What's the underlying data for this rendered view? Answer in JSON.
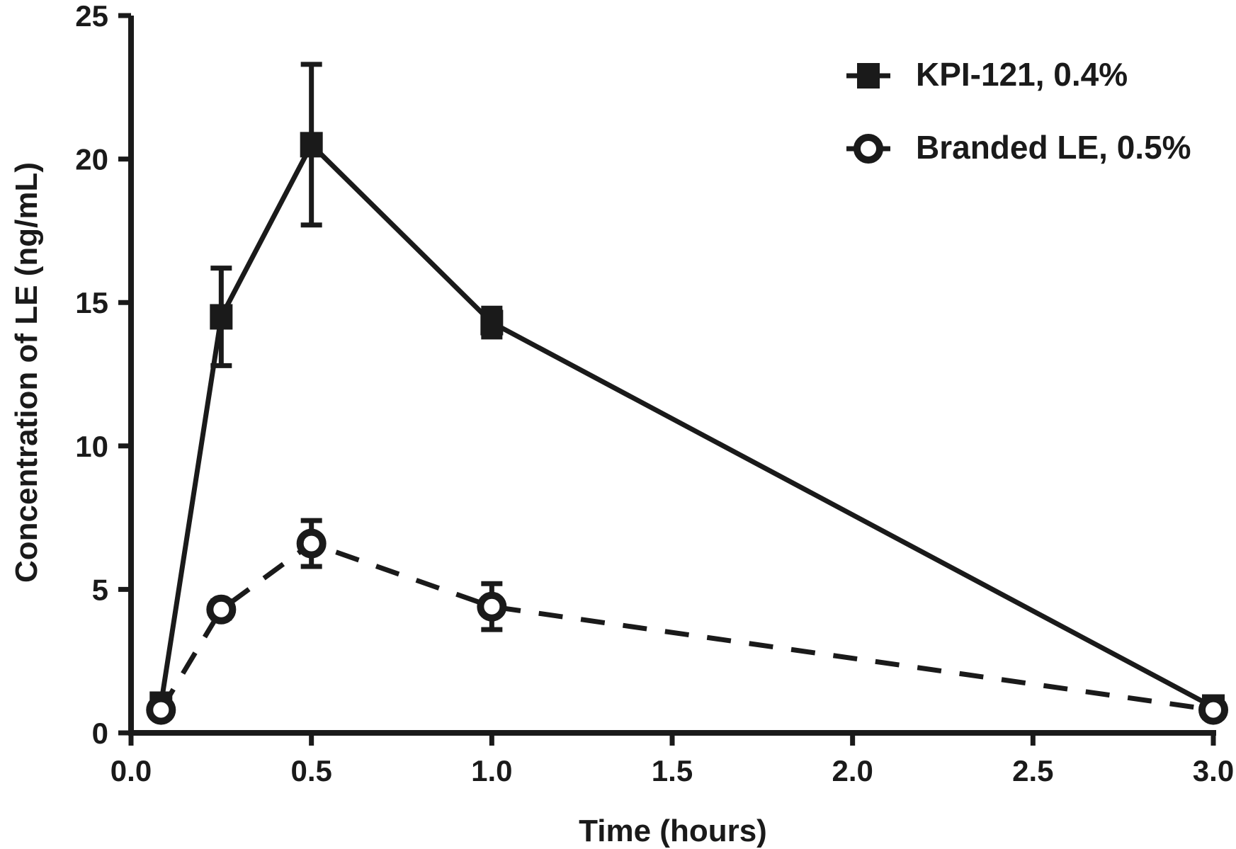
{
  "chart_data": {
    "type": "line",
    "title": "",
    "xlabel": "Time (hours)",
    "ylabel": "Concentration of LE (ng/mL)",
    "xlim": [
      0,
      3
    ],
    "ylim": [
      0,
      25
    ],
    "x_ticks": [
      0,
      0.5,
      1,
      1.5,
      2,
      2.5,
      3
    ],
    "x_tick_labels": [
      "0.0",
      "0.5",
      "1.0",
      "1.5",
      "2.0",
      "2.5",
      "3.0"
    ],
    "y_ticks": [
      0,
      5,
      10,
      15,
      20,
      25
    ],
    "y_tick_labels": [
      "0",
      "5",
      "10",
      "15",
      "20",
      "25"
    ],
    "grid": false,
    "legend_position": "top-right",
    "series": [
      {
        "name": "KPI-121, 0.4%",
        "marker": "square",
        "line_style": "solid",
        "x": [
          0.083,
          0.25,
          0.5,
          1.0,
          3.0
        ],
        "y": [
          1.0,
          14.5,
          20.5,
          14.3,
          0.9
        ],
        "error": [
          0,
          1.7,
          2.8,
          0.5,
          0.3
        ]
      },
      {
        "name": "Branded LE, 0.5%",
        "marker": "open-circle",
        "line_style": "dashed",
        "x": [
          0.083,
          0.25,
          0.5,
          1.0,
          3.0
        ],
        "y": [
          0.8,
          4.3,
          6.6,
          4.4,
          0.8
        ],
        "error": [
          0,
          0.3,
          0.8,
          0.8,
          0.2
        ]
      }
    ],
    "colors": {
      "ink": "#1a1a1a",
      "background": "#ffffff"
    }
  }
}
